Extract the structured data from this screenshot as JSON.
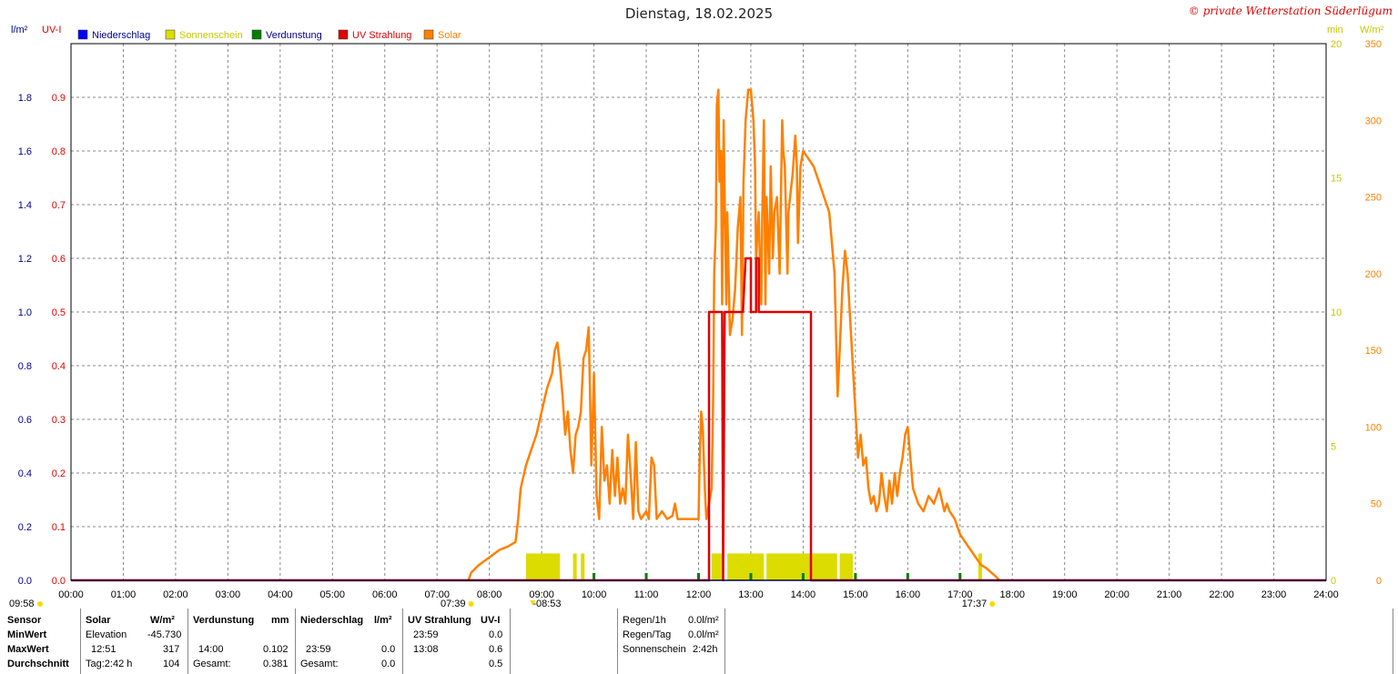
{
  "title": "Dienstag, 18.02.2025",
  "copyright": "© private Wetterstation Süderlügum",
  "units": {
    "left_outer": "l/m²",
    "left_inner": "UV-I",
    "right_inner": "min",
    "right_outer": "W/m²"
  },
  "legend": [
    {
      "label": "Niederschlag",
      "color": "#0000ff",
      "text_color": "#00008b"
    },
    {
      "label": "Sonnenschein",
      "color": "#dcdc00",
      "text_color": "#c8c800"
    },
    {
      "label": "Verdunstung",
      "color": "#008000",
      "text_color": "#00008b"
    },
    {
      "label": "UV Strahlung",
      "color": "#e00000",
      "text_color": "#e00000"
    },
    {
      "label": "Solar",
      "color": "#ff8000",
      "text_color": "#ff8000"
    }
  ],
  "markers": {
    "left_time": "09:58",
    "sunrise": "07:39",
    "solar_noon": "08:53",
    "sunset": "17:37"
  },
  "chart_data": {
    "type": "line",
    "x_ticks": [
      "00:00",
      "01:00",
      "02:00",
      "03:00",
      "04:00",
      "05:00",
      "06:00",
      "07:00",
      "08:00",
      "09:00",
      "10:00",
      "11:00",
      "12:00",
      "13:00",
      "14:00",
      "15:00",
      "16:00",
      "17:00",
      "18:00",
      "19:00",
      "20:00",
      "21:00",
      "22:00",
      "23:00",
      "24:00"
    ],
    "xlim_hours": [
      0,
      24
    ],
    "grid": true,
    "axes": {
      "niederschlag": {
        "ylim": [
          0,
          2.0
        ],
        "ticks": [
          "0.0",
          "0.2",
          "0.4",
          "0.6",
          "0.8",
          "1.0",
          "1.2",
          "1.4",
          "1.6",
          "1.8"
        ],
        "color": "#00008b"
      },
      "uv": {
        "ylim": [
          0,
          1.0
        ],
        "ticks": [
          "0.0",
          "0.1",
          "0.2",
          "0.3",
          "0.4",
          "0.5",
          "0.6",
          "0.7",
          "0.8",
          "0.9"
        ],
        "color": "#e00000"
      },
      "sonnenschein": {
        "ylim": [
          0,
          20
        ],
        "ticks": [
          "0",
          "5",
          "10",
          "15",
          "20"
        ],
        "color": "#c8c800"
      },
      "solar": {
        "ylim": [
          0,
          350
        ],
        "ticks": [
          "0",
          "50",
          "100",
          "150",
          "200",
          "250",
          "300",
          "350"
        ],
        "color": "#ff8000"
      }
    },
    "series": [
      {
        "name": "Solar",
        "axis": "solar",
        "color": "#ff8000",
        "points": [
          [
            7.6,
            0
          ],
          [
            7.65,
            5
          ],
          [
            7.8,
            10
          ],
          [
            8.0,
            15
          ],
          [
            8.2,
            20
          ],
          [
            8.35,
            22
          ],
          [
            8.5,
            25
          ],
          [
            8.55,
            40
          ],
          [
            8.6,
            60
          ],
          [
            8.7,
            75
          ],
          [
            8.8,
            85
          ],
          [
            8.9,
            95
          ],
          [
            9.0,
            110
          ],
          [
            9.1,
            125
          ],
          [
            9.2,
            135
          ],
          [
            9.25,
            150
          ],
          [
            9.3,
            155
          ],
          [
            9.35,
            140
          ],
          [
            9.4,
            120
          ],
          [
            9.45,
            95
          ],
          [
            9.5,
            110
          ],
          [
            9.55,
            85
          ],
          [
            9.6,
            70
          ],
          [
            9.65,
            95
          ],
          [
            9.7,
            100
          ],
          [
            9.75,
            110
          ],
          [
            9.8,
            145
          ],
          [
            9.85,
            150
          ],
          [
            9.9,
            165
          ],
          [
            9.92,
            130
          ],
          [
            9.95,
            75
          ],
          [
            10.0,
            135
          ],
          [
            10.05,
            55
          ],
          [
            10.1,
            40
          ],
          [
            10.15,
            100
          ],
          [
            10.2,
            65
          ],
          [
            10.25,
            75
          ],
          [
            10.3,
            50
          ],
          [
            10.35,
            85
          ],
          [
            10.4,
            55
          ],
          [
            10.45,
            80
          ],
          [
            10.5,
            50
          ],
          [
            10.55,
            60
          ],
          [
            10.6,
            50
          ],
          [
            10.65,
            95
          ],
          [
            10.7,
            70
          ],
          [
            10.75,
            40
          ],
          [
            10.8,
            90
          ],
          [
            10.85,
            45
          ],
          [
            10.9,
            40
          ],
          [
            11.0,
            45
          ],
          [
            11.05,
            40
          ],
          [
            11.1,
            80
          ],
          [
            11.15,
            75
          ],
          [
            11.2,
            40
          ],
          [
            11.3,
            45
          ],
          [
            11.4,
            40
          ],
          [
            11.5,
            42
          ],
          [
            11.55,
            50
          ],
          [
            11.6,
            40
          ],
          [
            11.7,
            40
          ],
          [
            11.8,
            40
          ],
          [
            11.9,
            40
          ],
          [
            12.0,
            40
          ],
          [
            12.02,
            75
          ],
          [
            12.05,
            110
          ],
          [
            12.08,
            100
          ],
          [
            12.12,
            60
          ],
          [
            12.15,
            40
          ],
          [
            12.2,
            50
          ],
          [
            12.25,
            60
          ],
          [
            12.28,
            120
          ],
          [
            12.3,
            200
          ],
          [
            12.33,
            230
          ],
          [
            12.35,
            310
          ],
          [
            12.38,
            320
          ],
          [
            12.4,
            260
          ],
          [
            12.43,
            280
          ],
          [
            12.45,
            180
          ],
          [
            12.48,
            300
          ],
          [
            12.5,
            250
          ],
          [
            12.53,
            180
          ],
          [
            12.55,
            240
          ],
          [
            12.6,
            160
          ],
          [
            12.65,
            170
          ],
          [
            12.7,
            190
          ],
          [
            12.75,
            230
          ],
          [
            12.8,
            250
          ],
          [
            12.83,
            160
          ],
          [
            12.86,
            260
          ],
          [
            12.9,
            300
          ],
          [
            12.95,
            320
          ],
          [
            13.0,
            320
          ],
          [
            13.05,
            300
          ],
          [
            13.08,
            270
          ],
          [
            13.1,
            210
          ],
          [
            13.15,
            240
          ],
          [
            13.18,
            200
          ],
          [
            13.2,
            180
          ],
          [
            13.22,
            240
          ],
          [
            13.25,
            300
          ],
          [
            13.28,
            180
          ],
          [
            13.3,
            250
          ],
          [
            13.35,
            200
          ],
          [
            13.38,
            270
          ],
          [
            13.42,
            210
          ],
          [
            13.45,
            240
          ],
          [
            13.5,
            250
          ],
          [
            13.55,
            200
          ],
          [
            13.6,
            300
          ],
          [
            13.62,
            280
          ],
          [
            13.65,
            270
          ],
          [
            13.7,
            200
          ],
          [
            13.72,
            240
          ],
          [
            13.75,
            250
          ],
          [
            13.8,
            265
          ],
          [
            13.85,
            290
          ],
          [
            13.88,
            270
          ],
          [
            13.9,
            220
          ],
          [
            13.95,
            270
          ],
          [
            14.0,
            280
          ],
          [
            14.1,
            275
          ],
          [
            14.2,
            270
          ],
          [
            14.3,
            260
          ],
          [
            14.4,
            250
          ],
          [
            14.5,
            240
          ],
          [
            14.55,
            220
          ],
          [
            14.6,
            200
          ],
          [
            14.63,
            160
          ],
          [
            14.66,
            120
          ],
          [
            14.7,
            150
          ],
          [
            14.75,
            190
          ],
          [
            14.8,
            215
          ],
          [
            14.85,
            200
          ],
          [
            14.9,
            170
          ],
          [
            14.95,
            140
          ],
          [
            15.0,
            110
          ],
          [
            15.05,
            80
          ],
          [
            15.1,
            95
          ],
          [
            15.15,
            75
          ],
          [
            15.2,
            80
          ],
          [
            15.25,
            60
          ],
          [
            15.3,
            50
          ],
          [
            15.35,
            55
          ],
          [
            15.4,
            45
          ],
          [
            15.45,
            50
          ],
          [
            15.5,
            70
          ],
          [
            15.55,
            55
          ],
          [
            15.6,
            45
          ],
          [
            15.65,
            65
          ],
          [
            15.7,
            50
          ],
          [
            15.75,
            70
          ],
          [
            15.8,
            55
          ],
          [
            15.85,
            70
          ],
          [
            15.9,
            80
          ],
          [
            15.95,
            95
          ],
          [
            16.0,
            100
          ],
          [
            16.05,
            80
          ],
          [
            16.1,
            60
          ],
          [
            16.15,
            55
          ],
          [
            16.2,
            50
          ],
          [
            16.3,
            45
          ],
          [
            16.4,
            55
          ],
          [
            16.5,
            50
          ],
          [
            16.6,
            60
          ],
          [
            16.7,
            45
          ],
          [
            16.75,
            50
          ],
          [
            16.8,
            45
          ],
          [
            16.9,
            40
          ],
          [
            17.0,
            30
          ],
          [
            17.1,
            25
          ],
          [
            17.2,
            20
          ],
          [
            17.3,
            15
          ],
          [
            17.4,
            10
          ],
          [
            17.5,
            8
          ],
          [
            17.6,
            5
          ],
          [
            17.7,
            2
          ],
          [
            17.75,
            0
          ]
        ]
      },
      {
        "name": "UV Strahlung",
        "axis": "uv",
        "color": "#e00000",
        "points": [
          [
            0,
            0
          ],
          [
            12.2,
            0
          ],
          [
            12.2,
            0.5
          ],
          [
            12.45,
            0.5
          ],
          [
            12.47,
            0
          ],
          [
            12.5,
            0.5
          ],
          [
            12.55,
            0.5
          ],
          [
            12.6,
            0.5
          ],
          [
            12.65,
            0.5
          ],
          [
            12.7,
            0.5
          ],
          [
            12.75,
            0.5
          ],
          [
            12.85,
            0.5
          ],
          [
            12.9,
            0.6
          ],
          [
            13.0,
            0.6
          ],
          [
            13.0,
            0.5
          ],
          [
            13.1,
            0.5
          ],
          [
            13.1,
            0.6
          ],
          [
            13.15,
            0.6
          ],
          [
            13.15,
            0.5
          ],
          [
            14.15,
            0.5
          ],
          [
            14.15,
            0.0
          ],
          [
            24,
            0
          ]
        ]
      },
      {
        "name": "Niederschlag",
        "axis": "niederschlag",
        "color": "#0000ff",
        "points": [
          [
            0,
            0
          ],
          [
            24,
            0
          ]
        ]
      }
    ],
    "sonnenschein_bars": [
      [
        8.7,
        9.35,
        1
      ],
      [
        9.6,
        9.67,
        1
      ],
      [
        9.75,
        9.82,
        1
      ],
      [
        12.25,
        12.45,
        1
      ],
      [
        12.55,
        13.25,
        1
      ],
      [
        13.3,
        14.65,
        1
      ],
      [
        14.7,
        14.95,
        1
      ],
      [
        17.35,
        17.42,
        1
      ]
    ],
    "verdunstung_ticks": [
      10.0,
      11.0,
      12.0,
      13.0,
      14.0,
      15.0,
      16.0,
      17.0
    ]
  },
  "table": {
    "header": {
      "sensor": "Sensor",
      "solar": "Solar",
      "solar_unit": "W/m²",
      "verdunstung": "Verdunstung",
      "verdunstung_unit": "mm",
      "niederschlag": "Niederschlag",
      "niederschlag_unit": "l/m²",
      "uv": "UV Strahlung",
      "uv_unit": "UV-I"
    },
    "rows": [
      {
        "label": "MinWert",
        "solar_time": "Elevation",
        "solar_val": "-45.730",
        "verd_time": "",
        "verd_val": "",
        "nied_time": "",
        "nied_val": "",
        "uv_time": "23:59",
        "uv_val": "0.0"
      },
      {
        "label": "MaxWert",
        "solar_time": "12:51",
        "solar_val": "317",
        "verd_time": "14:00",
        "verd_val": "0.102",
        "nied_time": "23:59",
        "nied_val": "0.0",
        "uv_time": "13:08",
        "uv_val": "0.6"
      },
      {
        "label": "Durchschnitt",
        "solar_time": "Tag:2:42 h",
        "solar_val": "104",
        "verd_time": "Gesamt:",
        "verd_val": "0.381",
        "nied_time": "Gesamt:",
        "nied_val": "0.0",
        "uv_time": "",
        "uv_val": "0.5"
      }
    ],
    "extra": [
      {
        "label": "Regen/1h",
        "value": "0.0l/m²"
      },
      {
        "label": "Regen/Tag",
        "value": "0.0l/m²"
      },
      {
        "label": "Sonnenschein",
        "value": "2:42h"
      }
    ]
  }
}
